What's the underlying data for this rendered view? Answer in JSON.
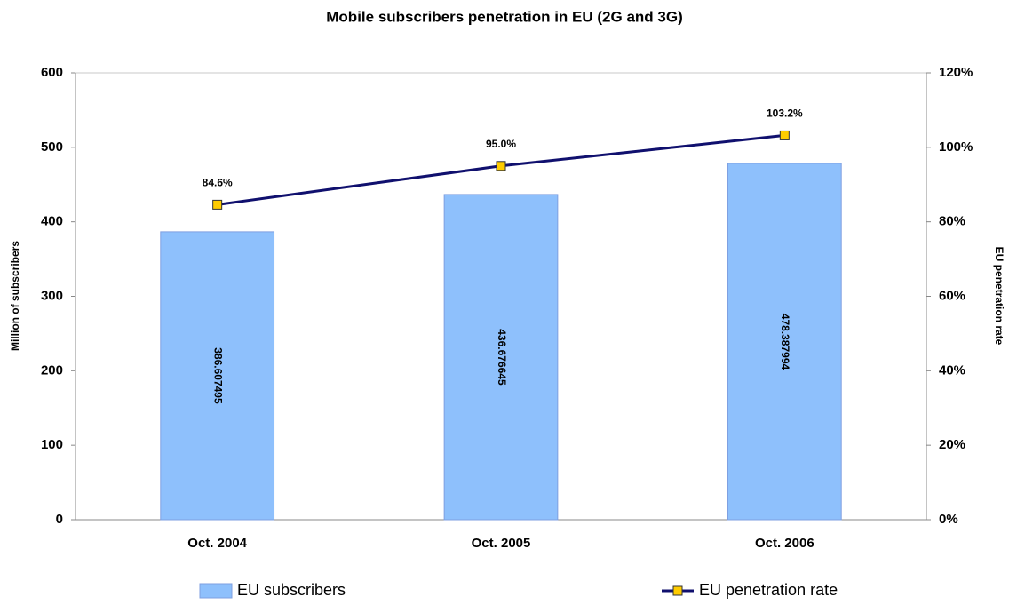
{
  "chart_data": {
    "type": "bar",
    "title": "Mobile subscribers  penetration in EU (2G and 3G)",
    "y_label": "Million of subscribers",
    "y2_label": "EU penetration rate",
    "categories": [
      "Oct. 2004",
      "Oct. 2005",
      "Oct. 2006"
    ],
    "series": [
      {
        "name": "EU subscribers",
        "type": "bar",
        "color": "#8ec0fc",
        "values": [
          386.607495,
          436.676645,
          478.387994
        ]
      },
      {
        "name": "EU penetration rate",
        "type": "line",
        "axis": "y2",
        "color": "#10106e",
        "marker_color": "#ffcc00",
        "values": [
          84.6,
          95.0,
          103.2
        ],
        "value_labels": [
          "84.6%",
          "95.0%",
          "103.2%"
        ]
      }
    ],
    "ylim": [
      0,
      600
    ],
    "yticks": [
      0,
      100,
      200,
      300,
      400,
      500,
      600
    ],
    "y2lim": [
      0,
      120
    ],
    "y2ticks": [
      {
        "value": 0,
        "label": "0%"
      },
      {
        "value": 20,
        "label": "20%"
      },
      {
        "value": 40,
        "label": "40%"
      },
      {
        "value": 60,
        "label": "60%"
      },
      {
        "value": 80,
        "label": "80%"
      },
      {
        "value": 100,
        "label": "100%"
      },
      {
        "value": 120,
        "label": "120%"
      }
    ],
    "grid": false,
    "legend": "bottom"
  }
}
